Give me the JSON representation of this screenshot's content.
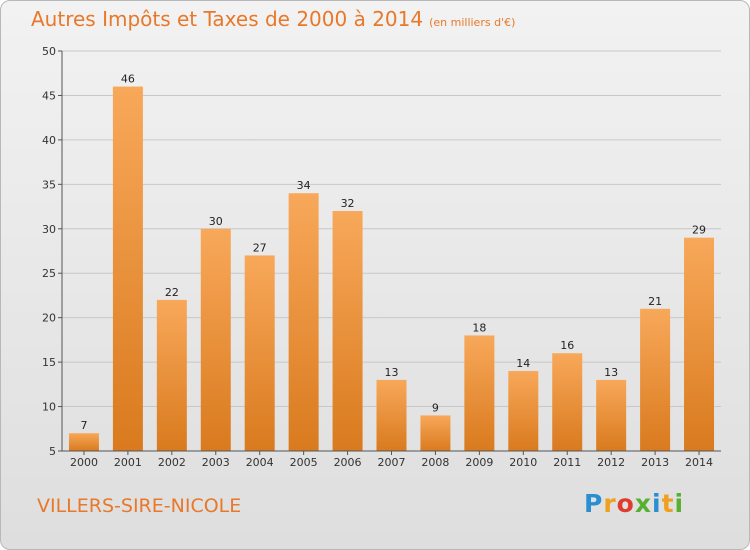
{
  "chart_data": {
    "type": "bar",
    "title": "Autres Impôts et Taxes de 2000 à 2014",
    "subtitle": "(en milliers d'€)",
    "categories": [
      "2000",
      "2001",
      "2002",
      "2003",
      "2004",
      "2005",
      "2006",
      "2007",
      "2008",
      "2009",
      "2010",
      "2011",
      "2012",
      "2013",
      "2014"
    ],
    "values": [
      7,
      46,
      22,
      30,
      27,
      34,
      32,
      13,
      9,
      18,
      14,
      16,
      13,
      21,
      29
    ],
    "ylim": [
      5,
      50
    ],
    "yticks": [
      5,
      10,
      15,
      20,
      25,
      30,
      35,
      40,
      45,
      50
    ],
    "grid": true,
    "bar_color_top": "#f8a85a",
    "bar_color_bottom": "#d97a1e"
  },
  "footer": {
    "place": "VILLERS-SIRE-NICOLE",
    "logo_letters": [
      "P",
      "r",
      "o",
      "x",
      "i",
      "t",
      "i"
    ],
    "logo_colors": [
      "#2a8fd0",
      "#f0a020",
      "#e03c2c",
      "#58b030",
      "#2a8fd0",
      "#f0a020",
      "#58b030"
    ]
  }
}
